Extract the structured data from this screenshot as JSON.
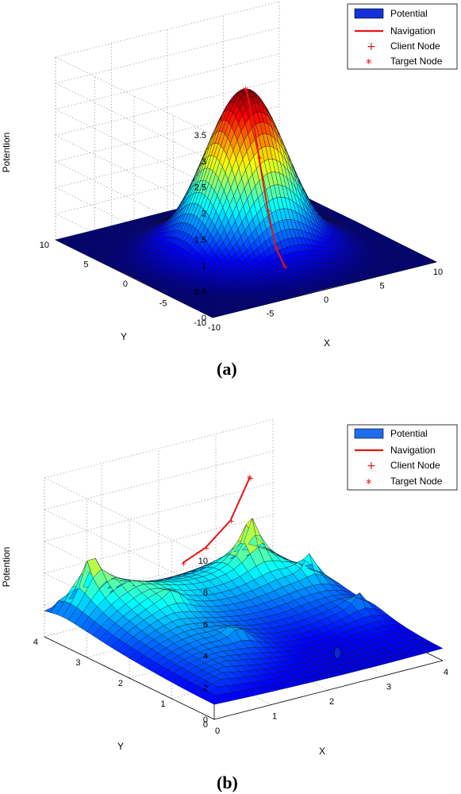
{
  "chart_data": [
    {
      "type": "surface",
      "panel": "(a)",
      "zlabel": "Potention",
      "xlabel": "X",
      "ylabel": "Y",
      "xlim": [
        -10,
        10
      ],
      "ylim": [
        -10,
        10
      ],
      "zlim": [
        0,
        3.5
      ],
      "x_ticks": [
        "-10",
        "-5",
        "0",
        "5",
        "10"
      ],
      "y_ticks": [
        "-10",
        "-5",
        "0",
        "5",
        "10"
      ],
      "z_ticks": [
        "0",
        "0.5",
        "1",
        "1.5",
        "2",
        "2.5",
        "3",
        "3.5"
      ],
      "grid": true,
      "colormap": "jet",
      "legend_position": "top-right",
      "legend": [
        "Potential",
        "Navigation",
        "Client Node",
        "Target Node"
      ],
      "peak": {
        "x": 0,
        "y": 0,
        "z": 3.1
      },
      "navigation_path": [
        {
          "x": 0.3,
          "y": -4.5,
          "z": 0.02
        },
        {
          "x": 0.25,
          "y": -3.5,
          "z": 0.3
        },
        {
          "x": 0.2,
          "y": -2.5,
          "z": 0.95
        },
        {
          "x": 0.1,
          "y": -1.5,
          "z": 1.9
        },
        {
          "x": 0.05,
          "y": -0.8,
          "z": 2.6
        },
        {
          "x": 0,
          "y": 0,
          "z": 3.1
        }
      ]
    },
    {
      "type": "surface",
      "panel": "(b)",
      "zlabel": "Potention",
      "xlabel": "X",
      "ylabel": "Y",
      "xlim": [
        0,
        4
      ],
      "ylim": [
        0,
        4
      ],
      "zlim": [
        0,
        10
      ],
      "x_ticks": [
        "0",
        "1",
        "2",
        "3",
        "4"
      ],
      "y_ticks": [
        "0",
        "1",
        "2",
        "3",
        "4"
      ],
      "z_ticks": [
        "0",
        "2",
        "4",
        "6",
        "8",
        "10"
      ],
      "grid": true,
      "colormap": "jet",
      "legend_position": "top-right",
      "legend": [
        "Potential",
        "Navigation",
        "Client Node",
        "Target Node"
      ],
      "spikes": [
        {
          "x": 0.5,
          "y": 3.6,
          "z": 7.2
        },
        {
          "x": 1.2,
          "y": 2.6,
          "z": 4.8
        },
        {
          "x": 1.5,
          "y": 1.5,
          "z": 5.2
        },
        {
          "x": 3.0,
          "y": 3.2,
          "z": 8.3
        },
        {
          "x": 3.6,
          "y": 2.6,
          "z": 5.8
        },
        {
          "x": 3.7,
          "y": 1.6,
          "z": 4.8
        }
      ],
      "navigation_path": [
        {
          "x": 1.9,
          "y": 3.3,
          "z": 3.8
        },
        {
          "x": 2.3,
          "y": 3.3,
          "z": 4.4
        },
        {
          "x": 2.7,
          "y": 3.25,
          "z": 5.8
        },
        {
          "x": 3.0,
          "y": 3.2,
          "z": 8.3
        }
      ],
      "client_node": {
        "x": 2.9,
        "y": 1.0,
        "z": 0.0
      }
    }
  ]
}
